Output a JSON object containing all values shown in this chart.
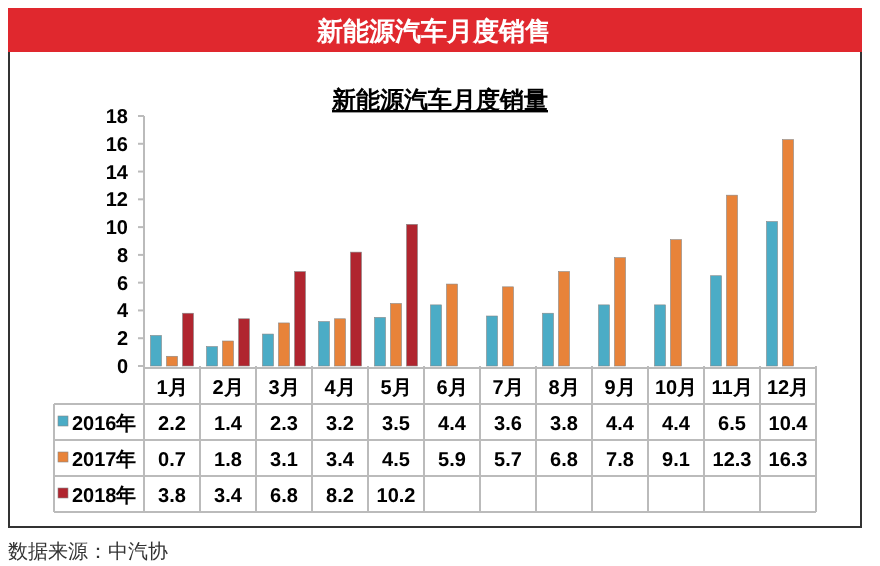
{
  "chart_data": {
    "type": "bar",
    "title": "新能源汽车月度销售",
    "subtitle": "新能源汽车月度销量",
    "categories": [
      "1月",
      "2月",
      "3月",
      "4月",
      "5月",
      "6月",
      "7月",
      "8月",
      "9月",
      "10月",
      "11月",
      "12月"
    ],
    "series": [
      {
        "name": "2016年",
        "color": "#4bacc6",
        "values": [
          2.2,
          1.4,
          2.3,
          3.2,
          3.5,
          4.4,
          3.6,
          3.8,
          4.4,
          4.4,
          6.5,
          10.4
        ]
      },
      {
        "name": "2017年",
        "color": "#e8833a",
        "values": [
          0.7,
          1.8,
          3.1,
          3.4,
          4.5,
          5.9,
          5.7,
          6.8,
          7.8,
          9.1,
          12.3,
          16.3
        ]
      },
      {
        "name": "2018年",
        "color": "#b0252f",
        "values": [
          3.8,
          3.4,
          6.8,
          8.2,
          10.2,
          null,
          null,
          null,
          null,
          null,
          null,
          null
        ]
      }
    ],
    "ylim": [
      0,
      18
    ],
    "yticks": [
      0,
      2,
      4,
      6,
      8,
      10,
      12,
      14,
      16,
      18
    ],
    "grid": false,
    "legend": "bottom",
    "data_labels": true,
    "annotations": [
      "数据来源：中汽协"
    ]
  }
}
